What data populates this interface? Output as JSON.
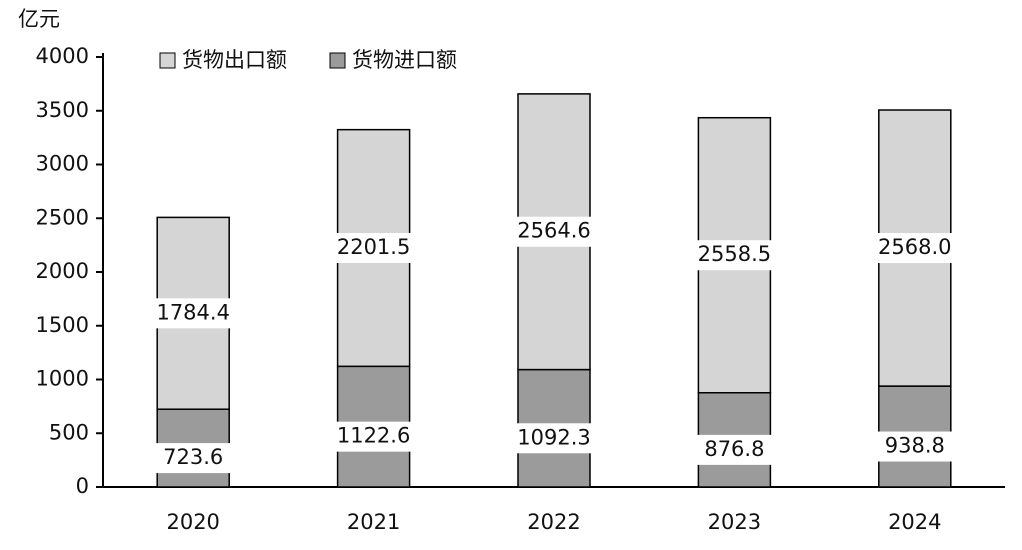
{
  "chart_data": {
    "type": "stacked-bar",
    "unit_label": "亿元",
    "categories": [
      "2020",
      "2021",
      "2022",
      "2023",
      "2024"
    ],
    "series": [
      {
        "name": "货物进口额",
        "color": "#9b9b9b",
        "values": [
          723.6,
          1122.6,
          1092.3,
          876.8,
          938.8
        ]
      },
      {
        "name": "货物出口额",
        "color": "#d5d5d5",
        "values": [
          1784.4,
          2201.5,
          2564.6,
          2558.5,
          2568.0
        ],
        "value_labels": [
          "1784.4",
          "2201.5",
          "2564.6",
          "2558.5",
          "2568.0"
        ]
      }
    ],
    "ylim": [
      0,
      4000
    ],
    "yticks": [
      0,
      500,
      1000,
      1500,
      2000,
      2500,
      3000,
      3500,
      4000
    ],
    "grid": false
  }
}
